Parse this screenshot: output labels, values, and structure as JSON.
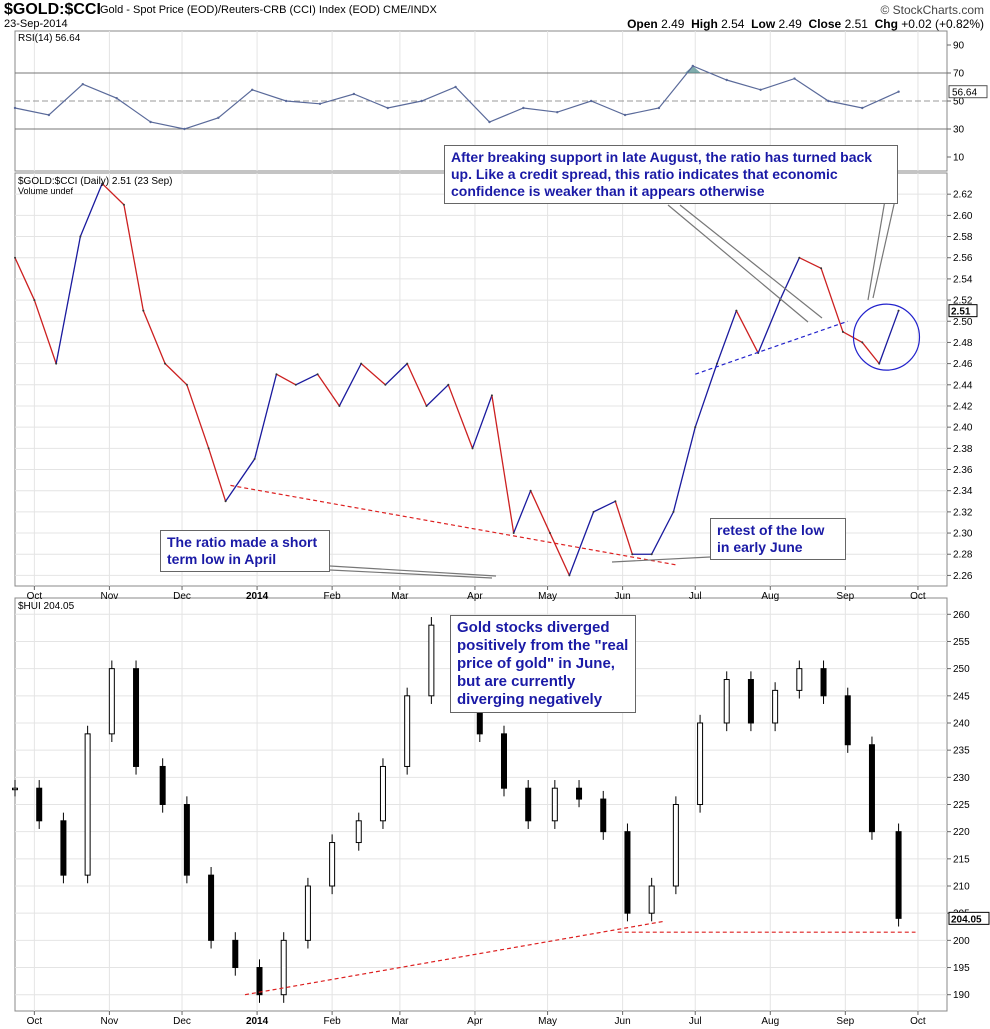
{
  "header": {
    "symbol": "$GOLD:$CCI",
    "description": "Gold - Spot Price (EOD)/Reuters-CRB (CCI) Index (EOD)",
    "exchange": "CME/INDX",
    "date": "23-Sep-2014",
    "watermark": "© StockCharts.com",
    "open_label": "Open",
    "open": "2.49",
    "high_label": "High",
    "high": "2.54",
    "low_label": "Low",
    "low": "2.49",
    "close_label": "Close",
    "close": "2.51",
    "chg_label": "Chg",
    "chg": "+0.02 (+0.82%)"
  },
  "annotations": {
    "top_right": "After breaking support in late August, the ratio has turned back up. Like a credit spread, this ratio indicates that economic confidence is weaker than it appears otherwise",
    "april": "The ratio made a short term low in April",
    "june": "retest of the low in early June",
    "hui": "Gold stocks diverged positively from the \"real price of gold\" in June, but are currently diverging negatively"
  },
  "colors": {
    "up": "#1a1a9e",
    "down": "#cc2020",
    "rsi_line": "#5a6a9a",
    "rsi_fill": "#4a8a8a",
    "support_red": "#dd2020",
    "support_blue": "#2222cc",
    "note_text": "#1a1aa6"
  },
  "chart_data": [
    {
      "type": "line",
      "panel": "RSI",
      "title": "RSI(14)",
      "last_value": "56.64",
      "ylim": [
        0,
        100
      ],
      "yticks": [
        10,
        30,
        50,
        70,
        90
      ],
      "reference_lines": [
        30,
        50,
        70
      ],
      "x": [
        "2013-09-23",
        "2013-10-07",
        "2013-10-21",
        "2013-11-04",
        "2013-11-18",
        "2013-12-02",
        "2013-12-16",
        "2013-12-30",
        "2014-01-13",
        "2014-01-27",
        "2014-02-10",
        "2014-02-24",
        "2014-03-10",
        "2014-03-24",
        "2014-04-07",
        "2014-04-21",
        "2014-05-05",
        "2014-05-19",
        "2014-06-02",
        "2014-06-16",
        "2014-06-30",
        "2014-07-14",
        "2014-07-28",
        "2014-08-11",
        "2014-08-25",
        "2014-09-08",
        "2014-09-23"
      ],
      "values": [
        45,
        40,
        62,
        52,
        35,
        30,
        38,
        58,
        50,
        48,
        55,
        45,
        50,
        60,
        35,
        45,
        42,
        50,
        40,
        45,
        75,
        65,
        58,
        66,
        50,
        45,
        56.64
      ]
    },
    {
      "type": "line",
      "panel": "price",
      "title": "$GOLD:$CCI (Daily)",
      "last_value": "2.51",
      "last_date": "23 Sep",
      "volume_label": "Volume undef",
      "ylim": [
        2.25,
        2.64
      ],
      "yticks": [
        2.26,
        2.28,
        2.3,
        2.32,
        2.34,
        2.36,
        2.38,
        2.4,
        2.42,
        2.44,
        2.46,
        2.48,
        2.5,
        2.52,
        2.54,
        2.56,
        2.58,
        2.6,
        2.62
      ],
      "xtick_labels": [
        "Oct",
        "Nov",
        "Dec",
        "2014",
        "Feb",
        "Mar",
        "Apr",
        "May",
        "Jun",
        "Jul",
        "Aug",
        "Sep",
        "Oct"
      ],
      "x": [
        "2013-09-23",
        "2013-10-01",
        "2013-10-10",
        "2013-10-20",
        "2013-10-29",
        "2013-11-07",
        "2013-11-15",
        "2013-11-24",
        "2013-12-03",
        "2013-12-12",
        "2013-12-19",
        "2013-12-31",
        "2014-01-09",
        "2014-01-17",
        "2014-01-26",
        "2014-02-04",
        "2014-02-13",
        "2014-02-23",
        "2014-03-04",
        "2014-03-12",
        "2014-03-21",
        "2014-03-31",
        "2014-04-08",
        "2014-04-17",
        "2014-04-24",
        "2014-05-02",
        "2014-05-10",
        "2014-05-20",
        "2014-05-29",
        "2014-06-05",
        "2014-06-13",
        "2014-06-22",
        "2014-07-01",
        "2014-07-10",
        "2014-07-18",
        "2014-07-27",
        "2014-08-05",
        "2014-08-13",
        "2014-08-22",
        "2014-08-31",
        "2014-09-08",
        "2014-09-15",
        "2014-09-23"
      ],
      "values": [
        2.56,
        2.52,
        2.46,
        2.58,
        2.63,
        2.61,
        2.51,
        2.46,
        2.44,
        2.38,
        2.33,
        2.37,
        2.45,
        2.44,
        2.45,
        2.42,
        2.46,
        2.44,
        2.46,
        2.42,
        2.44,
        2.38,
        2.43,
        2.3,
        2.34,
        2.3,
        2.26,
        2.32,
        2.33,
        2.28,
        2.28,
        2.32,
        2.4,
        2.46,
        2.51,
        2.47,
        2.52,
        2.56,
        2.55,
        2.49,
        2.48,
        2.46,
        2.51
      ],
      "trend_lines": [
        {
          "name": "support",
          "x": [
            "2013-12-21",
            "2014-06-23"
          ],
          "y": [
            2.345,
            2.27
          ]
        },
        {
          "name": "rising support",
          "x": [
            "2014-07-01",
            "2014-09-02"
          ],
          "y": [
            2.45,
            2.5
          ]
        }
      ]
    },
    {
      "type": "bar",
      "panel": "HUI",
      "title": "$HUI",
      "last_value": "204.05",
      "ylim": [
        187,
        263
      ],
      "yticks": [
        190,
        195,
        200,
        205,
        210,
        215,
        220,
        225,
        230,
        235,
        240,
        245,
        250,
        255,
        260
      ],
      "xtick_labels": [
        "Oct",
        "Nov",
        "Dec",
        "2014",
        "Feb",
        "Mar",
        "Apr",
        "May",
        "Jun",
        "Jul",
        "Aug",
        "Sep",
        "Oct"
      ],
      "x": [
        "2013-09-23",
        "2013-10-03",
        "2013-10-13",
        "2013-10-23",
        "2013-11-02",
        "2013-11-12",
        "2013-11-23",
        "2013-12-03",
        "2013-12-13",
        "2013-12-23",
        "2014-01-02",
        "2014-01-12",
        "2014-01-22",
        "2014-02-01",
        "2014-02-12",
        "2014-02-22",
        "2014-03-04",
        "2014-03-14",
        "2014-03-24",
        "2014-04-03",
        "2014-04-13",
        "2014-04-23",
        "2014-05-04",
        "2014-05-14",
        "2014-05-24",
        "2014-06-03",
        "2014-06-13",
        "2014-06-23",
        "2014-07-03",
        "2014-07-14",
        "2014-07-24",
        "2014-08-03",
        "2014-08-13",
        "2014-08-23",
        "2014-09-02",
        "2014-09-12",
        "2014-09-23"
      ],
      "values": [
        228,
        222,
        212,
        238,
        250,
        232,
        225,
        212,
        200,
        195,
        190,
        200,
        210,
        218,
        222,
        232,
        245,
        258,
        248,
        238,
        228,
        222,
        228,
        226,
        220,
        205,
        210,
        225,
        240,
        248,
        240,
        246,
        250,
        245,
        236,
        220,
        204.05
      ],
      "trend_lines": [
        {
          "name": "rising support",
          "x": [
            "2013-12-27",
            "2014-06-18"
          ],
          "y": [
            190,
            203.5
          ]
        },
        {
          "name": "horizontal support",
          "x": [
            "2014-05-30",
            "2014-09-30"
          ],
          "y": [
            201.5,
            201.5
          ]
        }
      ]
    }
  ]
}
